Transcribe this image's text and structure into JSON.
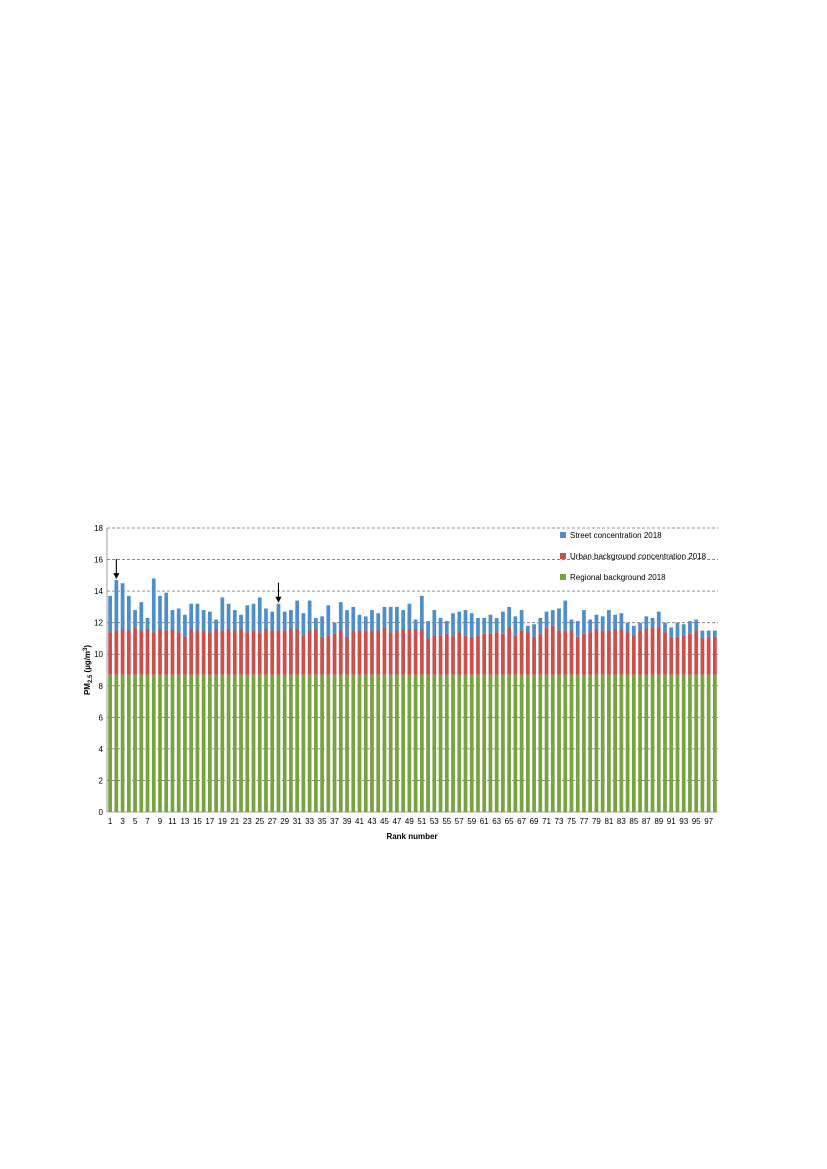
{
  "chart_data": {
    "type": "bar",
    "stacked": true,
    "title": "",
    "xlabel": "Rank number",
    "ylabel": "PM2.5 (µg/m³)",
    "ylabel_parts": {
      "base": "PM",
      "sub": "2.5",
      "rest": " (µg/m",
      "sup": "3",
      "end": ")"
    },
    "ylim": [
      0,
      18
    ],
    "yticks": [
      0,
      2,
      4,
      6,
      8,
      10,
      12,
      14,
      16,
      18
    ],
    "grid": "horizontal dashed",
    "legend_position": "top-right",
    "categories": [
      1,
      2,
      3,
      4,
      5,
      6,
      7,
      8,
      9,
      10,
      11,
      12,
      13,
      14,
      15,
      16,
      17,
      18,
      19,
      20,
      21,
      22,
      23,
      24,
      25,
      26,
      27,
      28,
      29,
      30,
      31,
      32,
      33,
      34,
      35,
      36,
      37,
      38,
      39,
      40,
      41,
      42,
      43,
      44,
      45,
      46,
      47,
      48,
      49,
      50,
      51,
      52,
      53,
      54,
      55,
      56,
      57,
      58,
      59,
      60,
      61,
      62,
      63,
      64,
      65,
      66,
      67,
      68,
      69,
      70,
      71,
      72,
      73,
      74,
      75,
      76,
      77,
      78,
      79,
      80,
      81,
      82,
      83,
      84,
      85,
      86,
      87,
      88,
      89,
      90,
      91,
      92,
      93,
      94,
      95,
      96,
      97,
      98
    ],
    "x_tick_labels": [
      "1",
      "3",
      "5",
      "7",
      "9",
      "11",
      "13",
      "15",
      "17",
      "19",
      "21",
      "23",
      "25",
      "27",
      "29",
      "31",
      "33",
      "35",
      "37",
      "39",
      "41",
      "43",
      "45",
      "47",
      "49",
      "51",
      "53",
      "55",
      "57",
      "59",
      "61",
      "63",
      "65",
      "67",
      "69",
      "71",
      "73",
      "75",
      "77",
      "79",
      "81",
      "83",
      "85",
      "87",
      "89",
      "91",
      "93",
      "95",
      "97"
    ],
    "series": [
      {
        "name": "Regional background 2018",
        "color": "#77a340",
        "values": [
          8.7,
          8.7,
          8.7,
          8.7,
          8.7,
          8.7,
          8.7,
          8.7,
          8.7,
          8.7,
          8.7,
          8.7,
          8.7,
          8.7,
          8.7,
          8.7,
          8.7,
          8.7,
          8.7,
          8.7,
          8.7,
          8.7,
          8.7,
          8.7,
          8.7,
          8.7,
          8.7,
          8.7,
          8.7,
          8.7,
          8.7,
          8.7,
          8.7,
          8.7,
          8.7,
          8.7,
          8.7,
          8.7,
          8.7,
          8.7,
          8.7,
          8.7,
          8.7,
          8.7,
          8.7,
          8.7,
          8.7,
          8.7,
          8.7,
          8.7,
          8.7,
          8.7,
          8.7,
          8.7,
          8.7,
          8.7,
          8.7,
          8.7,
          8.7,
          8.7,
          8.7,
          8.7,
          8.7,
          8.7,
          8.7,
          8.7,
          8.7,
          8.7,
          8.7,
          8.7,
          8.7,
          8.7,
          8.7,
          8.7,
          8.7,
          8.7,
          8.7,
          8.7,
          8.7,
          8.7,
          8.7,
          8.7,
          8.7,
          8.7,
          8.7,
          8.7,
          8.7,
          8.7,
          8.7,
          8.7,
          8.7,
          8.7,
          8.7,
          8.7,
          8.7,
          8.7,
          8.7,
          8.7
        ]
      },
      {
        "name": "Urban background concentration 2018",
        "color": "#c9504b",
        "values": [
          2.7,
          2.8,
          2.9,
          2.8,
          3.0,
          2.8,
          2.9,
          2.7,
          2.9,
          2.8,
          2.9,
          2.7,
          2.4,
          2.9,
          2.8,
          2.8,
          2.7,
          2.9,
          2.8,
          2.9,
          2.8,
          2.9,
          2.7,
          2.8,
          2.7,
          2.9,
          2.8,
          2.8,
          2.8,
          2.9,
          2.9,
          2.5,
          2.8,
          2.9,
          2.4,
          2.5,
          2.6,
          2.8,
          2.4,
          2.8,
          2.8,
          2.8,
          2.8,
          2.8,
          3.0,
          2.7,
          2.8,
          2.9,
          2.9,
          2.9,
          2.9,
          2.3,
          2.5,
          2.5,
          2.6,
          2.5,
          2.7,
          2.5,
          2.4,
          2.5,
          2.6,
          2.6,
          2.7,
          2.6,
          3.0,
          2.5,
          2.8,
          2.7,
          2.4,
          2.6,
          3.0,
          3.1,
          2.8,
          2.8,
          2.8,
          2.4,
          2.6,
          2.7,
          2.9,
          2.8,
          2.8,
          2.9,
          2.9,
          2.7,
          2.5,
          2.8,
          2.9,
          3.0,
          3.0,
          2.7,
          2.4,
          2.4,
          2.5,
          2.6,
          2.8,
          2.3,
          2.4,
          2.4
        ]
      },
      {
        "name": "Street concentration  2018",
        "color": "#4f8fc9",
        "values": [
          2.3,
          3.2,
          2.9,
          2.2,
          1.1,
          1.8,
          0.7,
          3.4,
          2.1,
          2.4,
          1.2,
          1.5,
          1.4,
          1.6,
          1.7,
          1.3,
          1.3,
          0.6,
          2.1,
          1.6,
          1.3,
          0.9,
          1.7,
          1.7,
          2.2,
          1.3,
          1.2,
          1.7,
          1.2,
          1.2,
          1.8,
          1.4,
          1.9,
          0.7,
          1.3,
          1.9,
          0.7,
          1.8,
          1.7,
          1.5,
          1.0,
          0.9,
          1.3,
          1.1,
          1.3,
          1.6,
          1.5,
          1.2,
          1.6,
          0.6,
          2.1,
          1.1,
          1.6,
          1.1,
          0.8,
          1.4,
          1.3,
          1.6,
          1.5,
          1.1,
          1.0,
          1.2,
          0.9,
          1.4,
          1.3,
          1.2,
          1.3,
          0.4,
          0.8,
          1.0,
          1.0,
          1.0,
          1.4,
          1.9,
          0.7,
          1.0,
          1.5,
          0.8,
          0.9,
          0.9,
          1.3,
          0.9,
          1.0,
          0.6,
          0.6,
          0.5,
          0.8,
          0.6,
          1.0,
          0.6,
          0.6,
          0.9,
          0.7,
          0.8,
          0.7,
          0.5,
          0.4,
          0.4
        ]
      }
    ],
    "annotations": [
      {
        "type": "arrow",
        "category": 2
      },
      {
        "type": "arrow",
        "category": 28
      }
    ]
  }
}
